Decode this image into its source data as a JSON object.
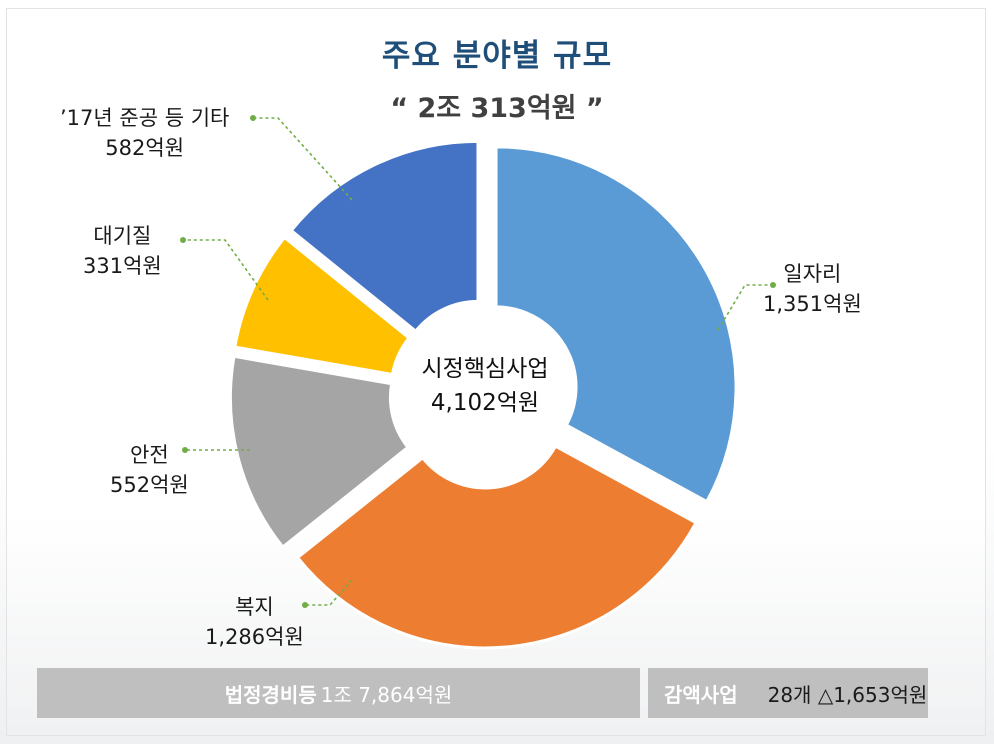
{
  "header": {
    "title": "주요 분야별 규모",
    "subtitle": "“ 2조  313억원 ”"
  },
  "center": {
    "name": "시정핵심사업",
    "value": "4,102억원"
  },
  "chart_data": {
    "type": "pie",
    "title": "주요 분야별 규모",
    "unit": "억원",
    "total": 4102,
    "slices": [
      {
        "name": "일자리",
        "value": 1351,
        "value_label": "1,351억원",
        "color": "#5b9bd5"
      },
      {
        "name": "복지",
        "value": 1286,
        "value_label": "1,286억원",
        "color": "#ed7d31"
      },
      {
        "name": "안전",
        "value": 552,
        "value_label": "552억원",
        "color": "#a5a5a5"
      },
      {
        "name": "대기질",
        "value": 331,
        "value_label": "331억원",
        "color": "#ffc000"
      },
      {
        "name": "’17년 준공 등 기타",
        "value": 582,
        "value_label": "582억원",
        "color": "#4472c4"
      }
    ]
  },
  "footer": {
    "legal_label": "법정경비등",
    "legal_value": "1조 7,864억원",
    "cut_label": "감액사업",
    "cut_value": "28개 △1,653억원"
  },
  "colors": {
    "title": "#1f4e79",
    "leader_line": "#70ad47",
    "footer_bg": "#bfbfbf"
  }
}
